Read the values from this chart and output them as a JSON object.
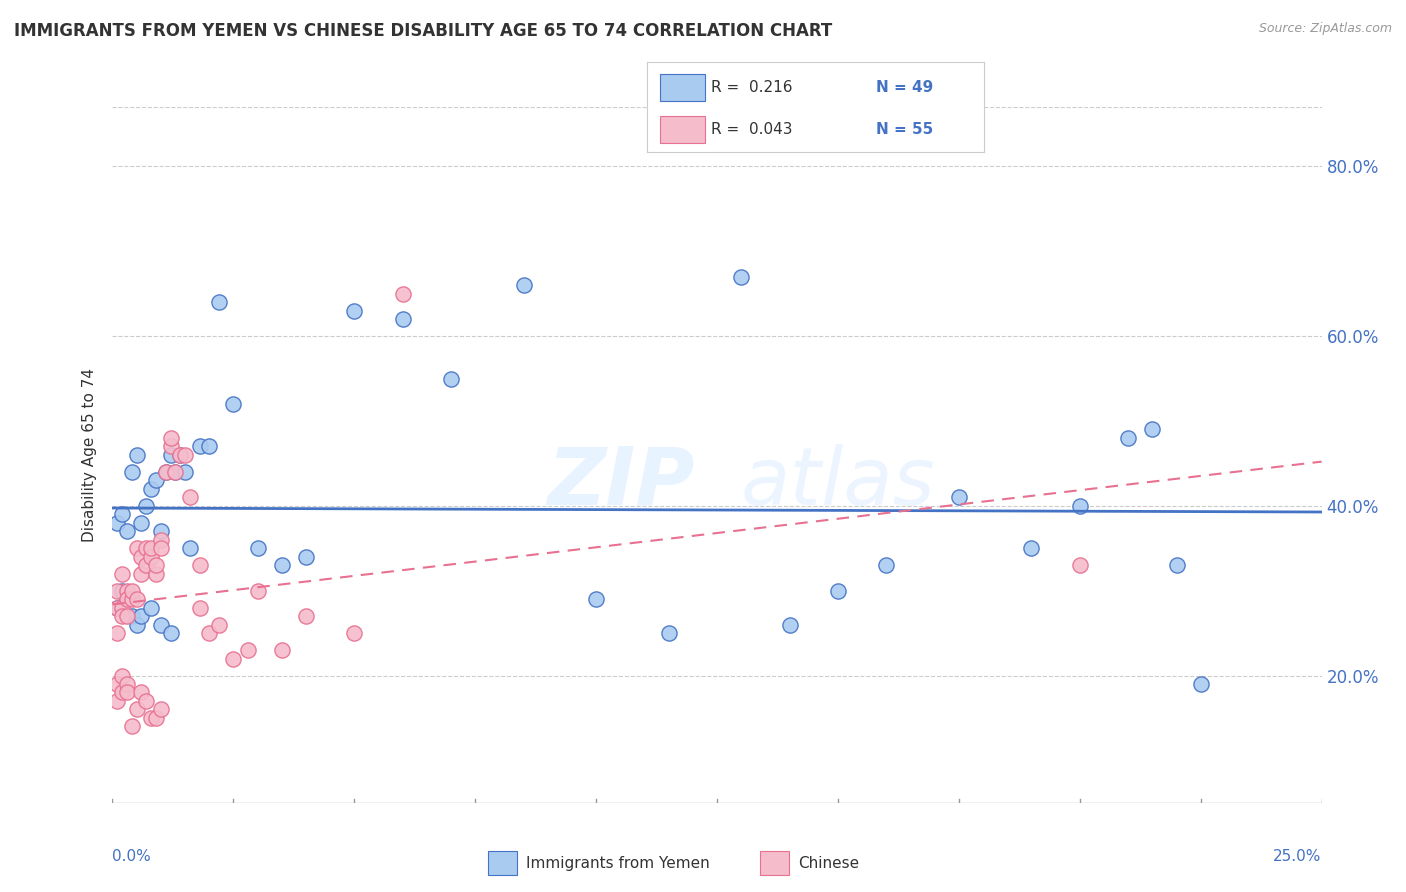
{
  "title": "IMMIGRANTS FROM YEMEN VS CHINESE DISABILITY AGE 65 TO 74 CORRELATION CHART",
  "source": "Source: ZipAtlas.com",
  "ylabel": "Disability Age 65 to 74",
  "legend_r1": "R =  0.216",
  "legend_n1": "N = 49",
  "legend_r2": "R =  0.043",
  "legend_n2": "N = 55",
  "color_blue": "#AACBF0",
  "color_pink": "#F5BCCC",
  "color_blue_line": "#4472C4",
  "color_pink_line": "#E87090",
  "color_blue_text": "#4472C4",
  "color_axis": "#4472C4",
  "background": "#FFFFFF",
  "xlim": [
    0.0,
    0.25
  ],
  "ylim": [
    0.05,
    0.87
  ],
  "ytick_vals": [
    0.2,
    0.4,
    0.6,
    0.8
  ],
  "blue_x": [
    0.001,
    0.002,
    0.003,
    0.004,
    0.005,
    0.006,
    0.007,
    0.008,
    0.009,
    0.01,
    0.011,
    0.012,
    0.013,
    0.014,
    0.015,
    0.016,
    0.018,
    0.02,
    0.022,
    0.025,
    0.03,
    0.035,
    0.04,
    0.05,
    0.06,
    0.07,
    0.085,
    0.1,
    0.115,
    0.13,
    0.14,
    0.15,
    0.16,
    0.175,
    0.19,
    0.2,
    0.21,
    0.215,
    0.22,
    0.225,
    0.001,
    0.002,
    0.003,
    0.004,
    0.005,
    0.006,
    0.008,
    0.01,
    0.012
  ],
  "blue_y": [
    0.38,
    0.39,
    0.37,
    0.44,
    0.46,
    0.38,
    0.4,
    0.42,
    0.43,
    0.37,
    0.44,
    0.46,
    0.44,
    0.46,
    0.44,
    0.35,
    0.47,
    0.47,
    0.64,
    0.52,
    0.35,
    0.33,
    0.34,
    0.63,
    0.62,
    0.55,
    0.66,
    0.29,
    0.25,
    0.67,
    0.26,
    0.3,
    0.33,
    0.41,
    0.35,
    0.4,
    0.48,
    0.49,
    0.33,
    0.19,
    0.28,
    0.3,
    0.29,
    0.27,
    0.26,
    0.27,
    0.28,
    0.26,
    0.25
  ],
  "pink_x": [
    0.001,
    0.001,
    0.001,
    0.002,
    0.002,
    0.002,
    0.003,
    0.003,
    0.003,
    0.004,
    0.004,
    0.005,
    0.005,
    0.006,
    0.006,
    0.007,
    0.007,
    0.008,
    0.008,
    0.009,
    0.009,
    0.01,
    0.01,
    0.011,
    0.012,
    0.012,
    0.013,
    0.014,
    0.015,
    0.016,
    0.018,
    0.02,
    0.022,
    0.025,
    0.028,
    0.03,
    0.035,
    0.04,
    0.05,
    0.06,
    0.001,
    0.001,
    0.002,
    0.002,
    0.003,
    0.003,
    0.004,
    0.005,
    0.006,
    0.007,
    0.008,
    0.009,
    0.01,
    0.018,
    0.2
  ],
  "pink_y": [
    0.3,
    0.28,
    0.25,
    0.28,
    0.27,
    0.32,
    0.3,
    0.27,
    0.29,
    0.29,
    0.3,
    0.35,
    0.29,
    0.32,
    0.34,
    0.33,
    0.35,
    0.34,
    0.35,
    0.32,
    0.33,
    0.36,
    0.35,
    0.44,
    0.47,
    0.48,
    0.44,
    0.46,
    0.46,
    0.41,
    0.28,
    0.25,
    0.26,
    0.22,
    0.23,
    0.3,
    0.23,
    0.27,
    0.25,
    0.65,
    0.17,
    0.19,
    0.18,
    0.2,
    0.19,
    0.18,
    0.14,
    0.16,
    0.18,
    0.17,
    0.15,
    0.15,
    0.16,
    0.33,
    0.33
  ]
}
